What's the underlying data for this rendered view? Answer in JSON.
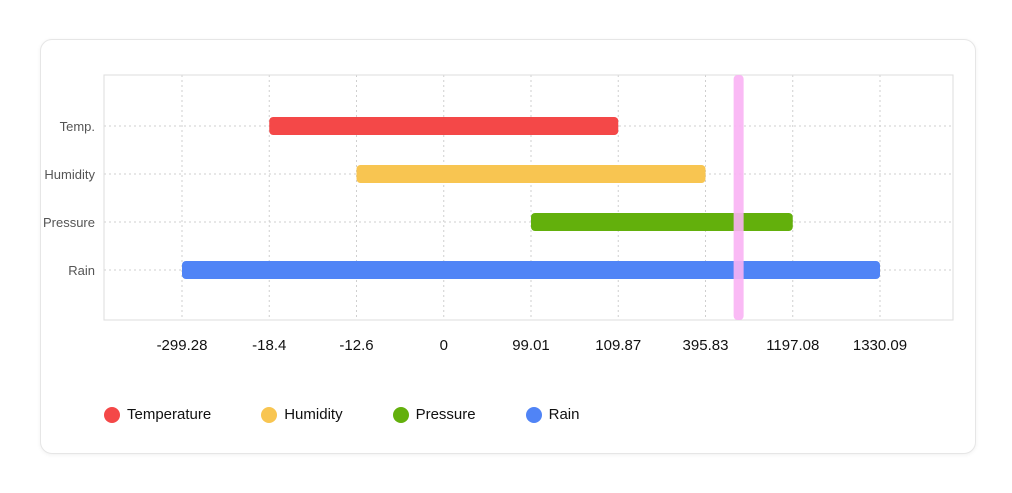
{
  "chart_data": {
    "type": "bar",
    "orientation": "horizontal",
    "x_scale": "categorical",
    "x_ticks": [
      "-299.28",
      "-18.4",
      "-12.6",
      "0",
      "99.01",
      "109.87",
      "395.83",
      "1197.08",
      "1330.09"
    ],
    "categories": [
      "Temp.",
      "Humidity",
      "Pressure",
      "Rain"
    ],
    "series": [
      {
        "name": "Temperature",
        "label": "Temp.",
        "start": -18.4,
        "end": 109.87,
        "color": "#f44848"
      },
      {
        "name": "Humidity",
        "label": "Humidity",
        "start": -12.6,
        "end": 395.83,
        "color": "#f8c551"
      },
      {
        "name": "Pressure",
        "label": "Pressure",
        "start": 99.01,
        "end": 1197.08,
        "color": "#63b00c"
      },
      {
        "name": "Rain",
        "label": "Rain",
        "start": -299.28,
        "end": 1330.09,
        "color": "#5084f6"
      }
    ],
    "reference_line": {
      "value": 700,
      "color": "#f9b3f4"
    },
    "grid": true,
    "legend_position": "bottom-left"
  }
}
